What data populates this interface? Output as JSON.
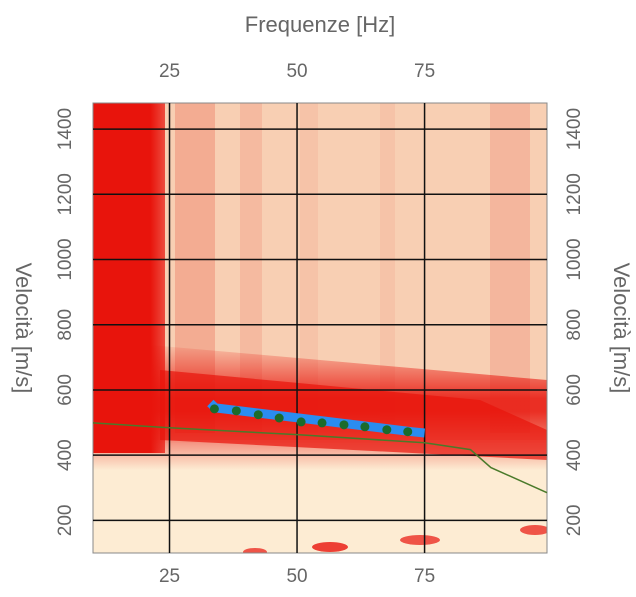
{
  "chart_data": {
    "type": "dispersion",
    "x_label": "Frequenze [Hz]",
    "y_label": "Velocità [m/s]",
    "xlim": [
      10,
      99
    ],
    "xticks": [
      25,
      50,
      75
    ],
    "ylim": [
      100,
      1480
    ],
    "yticks": [
      200,
      400,
      600,
      800,
      1000,
      1200,
      1400
    ],
    "grid": true,
    "series": [
      {
        "style": "line",
        "color": "#4a7a2a",
        "width": 1.5,
        "x": [
          10,
          25,
          50,
          75,
          84,
          88,
          99
        ],
        "values": [
          499,
          484,
          463,
          438,
          417,
          362,
          285
        ]
      },
      {
        "style": "band",
        "color": "#2b8cf0",
        "width": 9,
        "x": [
          33,
          34,
          72.5,
          75
        ],
        "values": [
          560,
          545,
          472,
          468
        ]
      },
      {
        "style": "points",
        "color": "#1b6b2b",
        "x": [
          33.8,
          38.1,
          42.4,
          46.5,
          50.8,
          54.9,
          59.2,
          63.3,
          67.6,
          71.7
        ],
        "values": [
          542,
          536,
          524,
          514,
          502,
          499,
          493,
          487,
          478,
          472
        ]
      }
    ]
  }
}
